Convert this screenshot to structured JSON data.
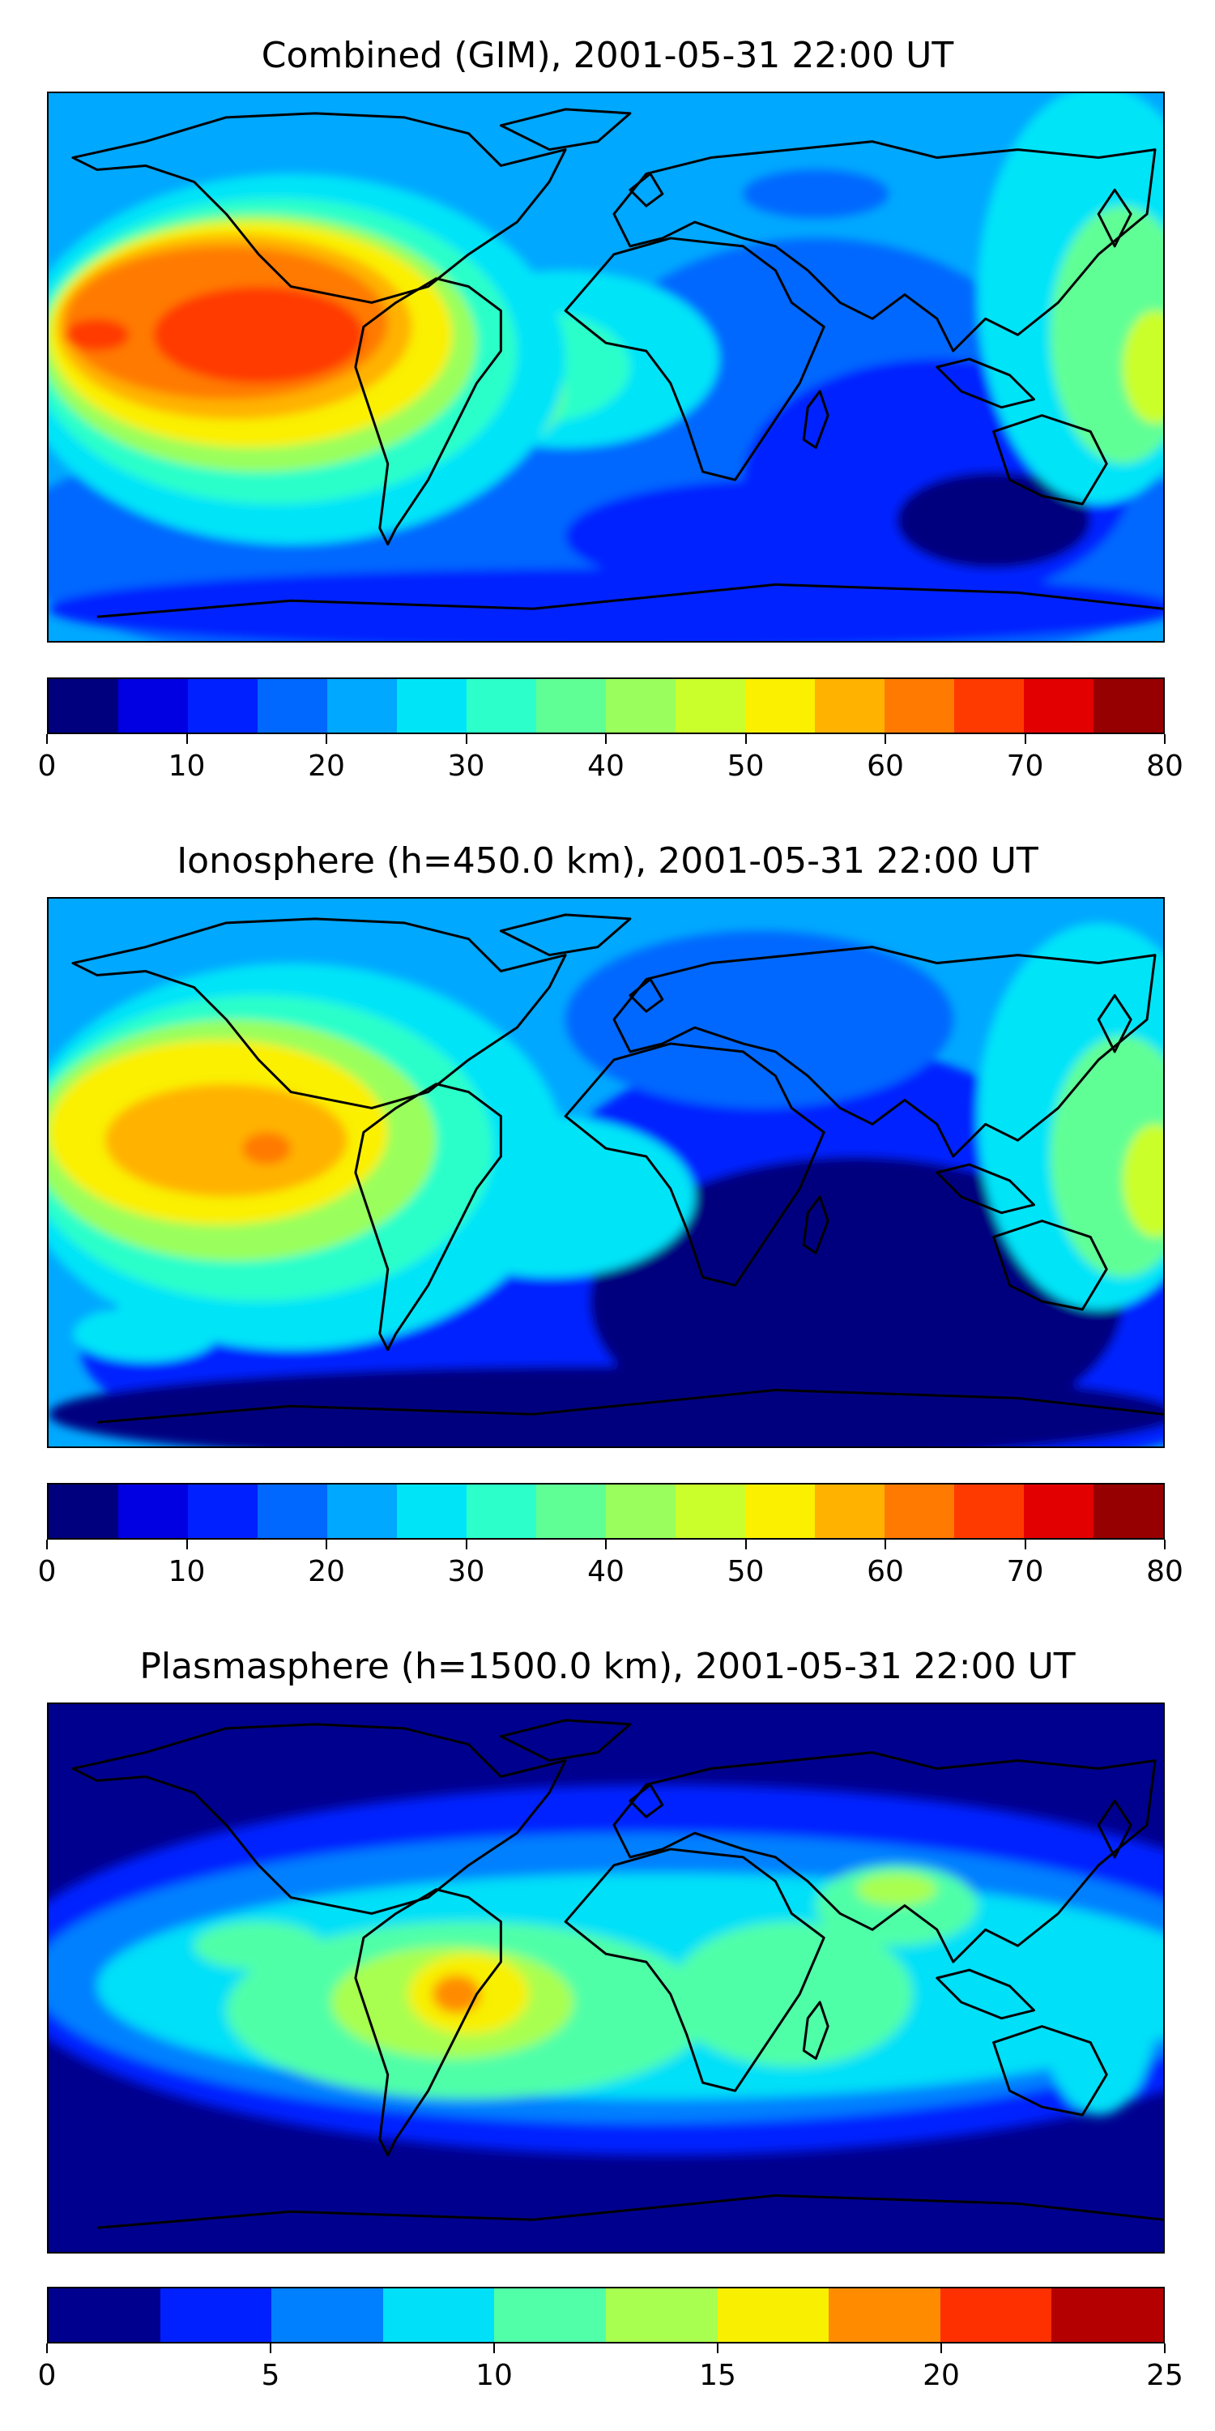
{
  "panels": [
    {
      "title": "Combined (GIM), 2001-05-31 22:00 UT",
      "colorbar": {
        "ticks": [
          "0",
          "10",
          "20",
          "30",
          "40",
          "50",
          "60",
          "70",
          "80"
        ],
        "colors": [
          "#00007f",
          "#0000e3",
          "#0020ff",
          "#0068ff",
          "#00a8ff",
          "#00e4f8",
          "#2cffca",
          "#60ff96",
          "#9aff5c",
          "#caff2c",
          "#faf000",
          "#ffb200",
          "#ff7a00",
          "#ff3a00",
          "#e30000",
          "#960000"
        ]
      }
    },
    {
      "title": "Ionosphere  (h=450.0 km), 2001-05-31 22:00 UT",
      "colorbar": {
        "ticks": [
          "0",
          "10",
          "20",
          "30",
          "40",
          "50",
          "60",
          "70",
          "80"
        ],
        "colors": [
          "#00007f",
          "#0000e3",
          "#0020ff",
          "#0068ff",
          "#00a8ff",
          "#00e4f8",
          "#2cffca",
          "#60ff96",
          "#9aff5c",
          "#caff2c",
          "#faf000",
          "#ffb200",
          "#ff7a00",
          "#ff3a00",
          "#e30000",
          "#960000"
        ]
      }
    },
    {
      "title": "Plasmasphere (h=1500.0 km), 2001-05-31 22:00 UT",
      "colorbar": {
        "ticks": [
          "0",
          "5",
          "10",
          "15",
          "20",
          "25"
        ],
        "colors": [
          "#00008e",
          "#0020ff",
          "#0080ff",
          "#00e0f8",
          "#50ffa8",
          "#a8ff50",
          "#f8f000",
          "#ff8c00",
          "#ff3000",
          "#b40000"
        ]
      }
    }
  ]
}
